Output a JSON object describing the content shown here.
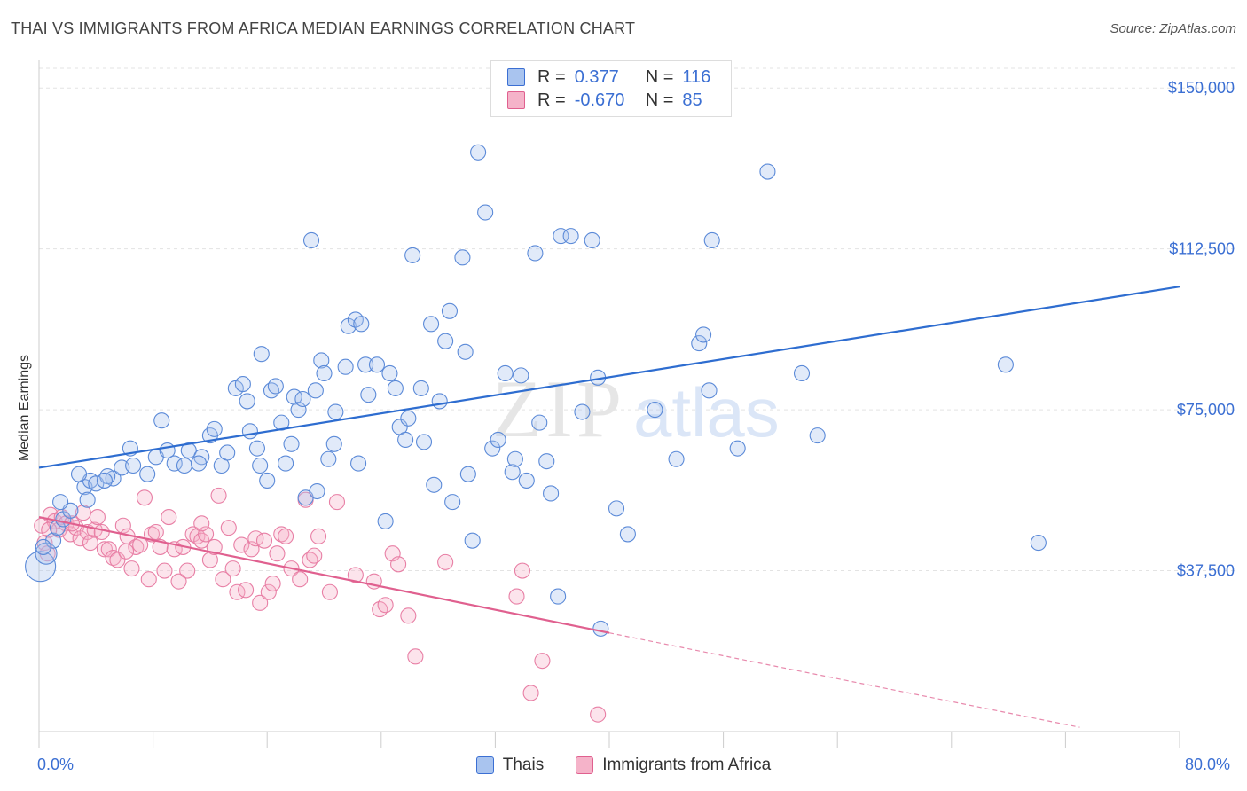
{
  "title": "THAI VS IMMIGRANTS FROM AFRICA MEDIAN EARNINGS CORRELATION CHART",
  "source": "Source: ZipAtlas.com",
  "watermark": {
    "zip": "ZIP",
    "atlas": "atlas"
  },
  "colors": {
    "blue": "#3b6fd3",
    "blue_fill": "#a9c4ef",
    "pink": "#e0608f",
    "pink_fill": "#f5b3c9",
    "grid": "#e0e0e0"
  },
  "legend": {
    "row1": {
      "r_label": "R =",
      "r_value": "0.377",
      "n_label": "N =",
      "n_value": "116"
    },
    "row2": {
      "r_label": "R =",
      "r_value": "-0.670",
      "n_label": "N =",
      "n_value": "85"
    }
  },
  "bottom_legend": {
    "series1": "Thais",
    "series2": "Immigrants from Africa"
  },
  "chart_data": {
    "type": "scatter",
    "ylabel": "Median Earnings",
    "xlabel": "",
    "x_tick_labels": [
      "0.0%",
      "80.0%"
    ],
    "y_tick_labels": [
      "$150,000",
      "$112,500",
      "$75,000",
      "$37,500"
    ],
    "xlim": [
      0,
      80
    ],
    "ylim": [
      0,
      155000
    ],
    "y_ticks": [
      150000,
      112500,
      75000,
      37500
    ],
    "series": [
      {
        "name": "Thais",
        "color": "#3b6fd3",
        "trend": {
          "x": [
            0,
            80
          ],
          "y": [
            61500,
            103700
          ]
        },
        "points": [
          [
            0.1,
            38500
          ],
          [
            0.5,
            41500
          ],
          [
            1,
            44500
          ],
          [
            1.3,
            47500
          ],
          [
            1.7,
            49500
          ],
          [
            2.2,
            51500
          ],
          [
            1.5,
            53500
          ],
          [
            3.2,
            57000
          ],
          [
            3.6,
            58500
          ],
          [
            4,
            57800
          ],
          [
            5.2,
            59000
          ],
          [
            4.8,
            59500
          ],
          [
            5.8,
            61500
          ],
          [
            6.6,
            62000
          ],
          [
            7.6,
            60000
          ],
          [
            6.4,
            66000
          ],
          [
            8.2,
            64000
          ],
          [
            9,
            65500
          ],
          [
            9.5,
            62500
          ],
          [
            10.2,
            62000
          ],
          [
            10.5,
            65500
          ],
          [
            11.4,
            64000
          ],
          [
            12,
            69000
          ],
          [
            12.3,
            70500
          ],
          [
            12.8,
            62000
          ],
          [
            13.2,
            65000
          ],
          [
            13.8,
            80000
          ],
          [
            14.3,
            81000
          ],
          [
            14.6,
            77000
          ],
          [
            15.3,
            66000
          ],
          [
            15.5,
            62000
          ],
          [
            15.6,
            88000
          ],
          [
            16,
            58500
          ],
          [
            16.3,
            79500
          ],
          [
            16.6,
            80500
          ],
          [
            17,
            72000
          ],
          [
            17.3,
            62500
          ],
          [
            17.7,
            67000
          ],
          [
            17.9,
            78000
          ],
          [
            18.2,
            75000
          ],
          [
            18.5,
            77500
          ],
          [
            18.7,
            54500
          ],
          [
            19.1,
            114500
          ],
          [
            19.4,
            79500
          ],
          [
            19.8,
            86500
          ],
          [
            20,
            83500
          ],
          [
            20.3,
            63500
          ],
          [
            20.7,
            67000
          ],
          [
            20.8,
            74500
          ],
          [
            21.5,
            85000
          ],
          [
            21.7,
            94500
          ],
          [
            22.2,
            96000
          ],
          [
            22.6,
            95000
          ],
          [
            22.9,
            85500
          ],
          [
            23.1,
            78500
          ],
          [
            23.7,
            85500
          ],
          [
            24.3,
            49000
          ],
          [
            24.6,
            83500
          ],
          [
            25,
            80000
          ],
          [
            25.3,
            71000
          ],
          [
            25.7,
            68000
          ],
          [
            26.2,
            111000
          ],
          [
            26.8,
            80000
          ],
          [
            27,
            67500
          ],
          [
            27.5,
            95000
          ],
          [
            27.7,
            57500
          ],
          [
            28.5,
            91000
          ],
          [
            28.8,
            98000
          ],
          [
            29,
            53500
          ],
          [
            29.7,
            110500
          ],
          [
            29.9,
            88500
          ],
          [
            30.4,
            44500
          ],
          [
            30.8,
            135000
          ],
          [
            31.3,
            121000
          ],
          [
            31.8,
            66000
          ],
          [
            32.2,
            68000
          ],
          [
            32.7,
            83500
          ],
          [
            33.2,
            60500
          ],
          [
            33.4,
            63500
          ],
          [
            33.8,
            83000
          ],
          [
            34.2,
            58500
          ],
          [
            34.8,
            111500
          ],
          [
            35.6,
            63000
          ],
          [
            35.9,
            55500
          ],
          [
            36.4,
            31500
          ],
          [
            36.6,
            115500
          ],
          [
            37.3,
            115500
          ],
          [
            38.1,
            74500
          ],
          [
            38.8,
            114500
          ],
          [
            39.2,
            82500
          ],
          [
            39.4,
            24000
          ],
          [
            41.3,
            46000
          ],
          [
            43.2,
            75000
          ],
          [
            44.7,
            63500
          ],
          [
            46.3,
            90500
          ],
          [
            46.6,
            92500
          ],
          [
            47,
            79500
          ],
          [
            47.2,
            114500
          ],
          [
            51.1,
            130500
          ],
          [
            53.5,
            83500
          ],
          [
            54.6,
            69000
          ],
          [
            67.8,
            85500
          ],
          [
            70.1,
            44000
          ],
          [
            0.3,
            43000
          ],
          [
            2.8,
            60000
          ],
          [
            3.4,
            54000
          ],
          [
            4.6,
            58500
          ],
          [
            8.6,
            72500
          ],
          [
            11.2,
            62500
          ],
          [
            14.8,
            70000
          ],
          [
            19.5,
            56000
          ],
          [
            22.4,
            62500
          ],
          [
            25.9,
            73000
          ],
          [
            28.1,
            77000
          ],
          [
            30.1,
            60000
          ],
          [
            35.1,
            72000
          ],
          [
            40.5,
            52000
          ],
          [
            49,
            66000
          ]
        ]
      },
      {
        "name": "Immigrants from Africa",
        "color": "#e0608f",
        "trend": {
          "x": [
            0,
            40
          ],
          "y": [
            50000,
            23000
          ]
        },
        "trend_dashed": {
          "x": [
            40,
            73
          ],
          "y": [
            23000,
            1000
          ]
        },
        "points": [
          [
            0.2,
            48000
          ],
          [
            0.4,
            44000
          ],
          [
            0.6,
            41500
          ],
          [
            0.8,
            50500
          ],
          [
            1.1,
            49000
          ],
          [
            1.4,
            47000
          ],
          [
            1.6,
            50000
          ],
          [
            1.9,
            48500
          ],
          [
            2.2,
            46000
          ],
          [
            2.6,
            47500
          ],
          [
            2.9,
            45000
          ],
          [
            3.1,
            51000
          ],
          [
            3.4,
            46500
          ],
          [
            3.6,
            44000
          ],
          [
            3.9,
            47000
          ],
          [
            4.1,
            50000
          ],
          [
            4.4,
            46500
          ],
          [
            4.6,
            42500
          ],
          [
            4.9,
            42500
          ],
          [
            5.2,
            40500
          ],
          [
            5.5,
            40000
          ],
          [
            5.9,
            48000
          ],
          [
            6.2,
            45500
          ],
          [
            6.5,
            38000
          ],
          [
            6.8,
            43000
          ],
          [
            7.1,
            43500
          ],
          [
            7.4,
            54500
          ],
          [
            7.7,
            35500
          ],
          [
            7.9,
            46000
          ],
          [
            8.2,
            46500
          ],
          [
            8.5,
            43000
          ],
          [
            8.8,
            37500
          ],
          [
            9.1,
            50000
          ],
          [
            9.5,
            42500
          ],
          [
            9.8,
            35000
          ],
          [
            10.1,
            43000
          ],
          [
            10.4,
            37500
          ],
          [
            10.8,
            46000
          ],
          [
            11.1,
            45500
          ],
          [
            11.4,
            44500
          ],
          [
            11.7,
            46000
          ],
          [
            12,
            40000
          ],
          [
            12.3,
            43000
          ],
          [
            12.6,
            55000
          ],
          [
            12.9,
            35500
          ],
          [
            13.3,
            47500
          ],
          [
            13.6,
            38000
          ],
          [
            13.9,
            32500
          ],
          [
            14.2,
            43500
          ],
          [
            14.5,
            33000
          ],
          [
            14.9,
            42500
          ],
          [
            15.2,
            45000
          ],
          [
            15.5,
            30000
          ],
          [
            15.8,
            44500
          ],
          [
            16.1,
            32500
          ],
          [
            16.4,
            34500
          ],
          [
            16.7,
            41500
          ],
          [
            17,
            46000
          ],
          [
            17.3,
            45500
          ],
          [
            17.7,
            38000
          ],
          [
            18.3,
            35500
          ],
          [
            18.7,
            54000
          ],
          [
            19,
            40000
          ],
          [
            19.3,
            41000
          ],
          [
            19.6,
            45500
          ],
          [
            20.4,
            32500
          ],
          [
            20.9,
            53500
          ],
          [
            22.2,
            36500
          ],
          [
            23.5,
            35000
          ],
          [
            23.9,
            28500
          ],
          [
            24.3,
            29500
          ],
          [
            24.8,
            41500
          ],
          [
            25.2,
            39000
          ],
          [
            25.9,
            27000
          ],
          [
            26.4,
            17500
          ],
          [
            28.5,
            39500
          ],
          [
            33.5,
            31500
          ],
          [
            33.9,
            37500
          ],
          [
            35.3,
            16500
          ],
          [
            34.5,
            9000
          ],
          [
            39.2,
            4000
          ],
          [
            0.7,
            47000
          ],
          [
            2.3,
            48500
          ],
          [
            6.1,
            42000
          ],
          [
            11.4,
            48500
          ]
        ]
      }
    ]
  }
}
